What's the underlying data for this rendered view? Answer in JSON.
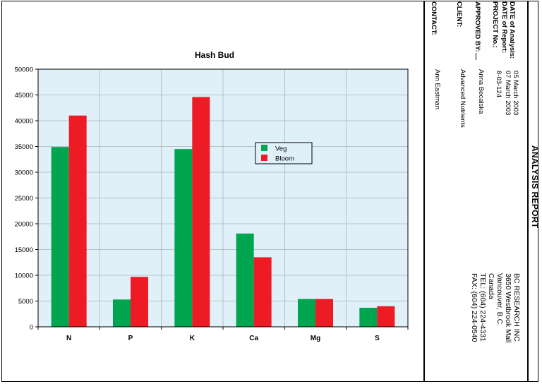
{
  "chart_data": {
    "type": "bar",
    "title": "Hash Bud",
    "categories": [
      "N",
      "P",
      "K",
      "Ca",
      "Mg",
      "S"
    ],
    "series": [
      {
        "name": "Veg",
        "values": [
          34900,
          5300,
          34500,
          18100,
          5400,
          3700
        ],
        "color": "#00a550"
      },
      {
        "name": "Bloom",
        "values": [
          41000,
          9700,
          44600,
          13500,
          5400,
          4000
        ],
        "color": "#ed1c24"
      }
    ],
    "ylim": [
      0,
      50000
    ],
    "yticks": [
      "50000",
      "45000",
      "40000",
      "35000",
      "30000",
      "25000",
      "20000",
      "15000",
      "10000",
      "5000",
      "0"
    ],
    "xlabel": "",
    "ylabel": "",
    "grid": true,
    "legend_position": "center-right",
    "plot_background": "#dff0f9"
  },
  "header": {
    "date_analysis_label": "DATE of Analysis:",
    "date_analysis_value": "05 March 2003",
    "date_report_label": "DATE of Report:",
    "date_report_value": "07 March 2003",
    "project_label": "PROJECT No.:",
    "project_value": "8-03-124",
    "approved_label": "APPROVED BY:",
    "approved_value": "Anna Becalska",
    "client_label": "CLIENT:",
    "client_value": "Advanced Nutrients",
    "contact_label": "CONTACT:",
    "contact_value": "Ann Eastman"
  },
  "report_title": "ANALYSIS REPORT",
  "lab": {
    "name": "BC RESEARCH INC",
    "address1": "3650 Westbrook Mall",
    "city": "Vancouver, B.C.",
    "country": "Canada",
    "tel": "TEL: (604) 224-4331",
    "fax": "FAX: (604) 224-0540"
  }
}
